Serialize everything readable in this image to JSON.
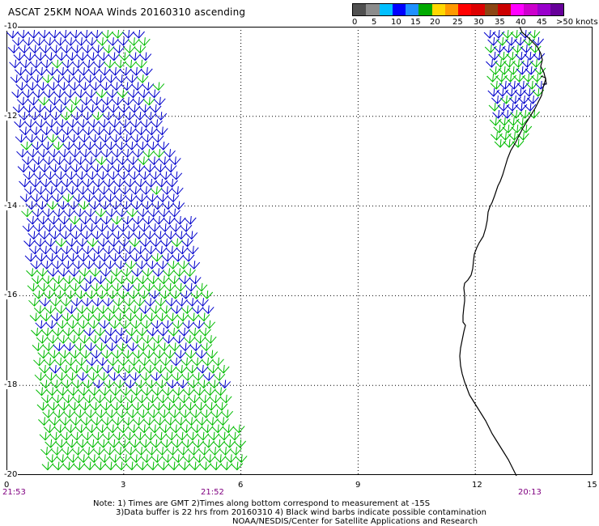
{
  "header": {
    "title": "ASCAT 25KM NOAA Winds 20160310 ascending"
  },
  "colorbar": {
    "colors": [
      "#505050",
      "#8c8c8c",
      "#00bfff",
      "#0000ff",
      "#1e90ff",
      "#00aa00",
      "#ffd700",
      "#ff9900",
      "#ff0000",
      "#dd0000",
      "#8b4513",
      "#cc0000",
      "#ff00ff",
      "#cc00cc",
      "#9900cc",
      "#660099"
    ],
    "ticks": [
      "0",
      "5",
      "10",
      "15",
      "20",
      "25",
      "30",
      "35",
      "40",
      "45",
      ">50 knots"
    ]
  },
  "map": {
    "lat_labels": [
      "-10",
      "-12",
      "-14",
      "-16",
      "-18",
      "-20"
    ],
    "lon_labels": [
      "0",
      "3",
      "6",
      "9",
      "12",
      "15"
    ],
    "lat_range": [
      -20,
      -10
    ],
    "lon_range": [
      0,
      15
    ],
    "times": [
      "21:53",
      "21:52",
      "20:13"
    ],
    "barb_colors": {
      "low": "#0000cc",
      "mid": "#00bb00"
    }
  },
  "notes": {
    "line1": "Note: 1) Times are GMT 2)Times along bottom correspond to measurement at -15S",
    "line2": "3)Data buffer is 22 hrs from 20160310 4) Black wind barbs indicate possible contamination",
    "line3": "NOAA/NESDIS/Center for Satellite Applications and Research"
  }
}
